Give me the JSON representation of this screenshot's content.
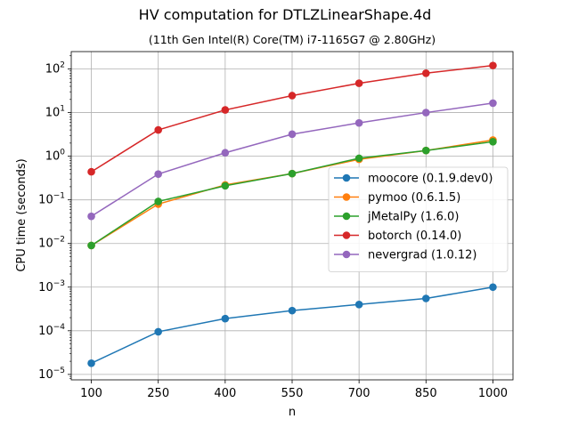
{
  "chart_data": {
    "type": "line",
    "title": "HV computation for DTLZLinearShape.4d",
    "subtitle": "(11th Gen Intel(R) Core(TM) i7-1165G7 @ 2.80GHz)",
    "xlabel": "n",
    "ylabel": "CPU time (seconds)",
    "x": [
      100,
      250,
      400,
      550,
      700,
      850,
      1000
    ],
    "x_ticks": [
      "100",
      "250",
      "400",
      "550",
      "700",
      "850",
      "1000"
    ],
    "y_scale": "log",
    "ylim": [
      7.5e-06,
      250
    ],
    "y_ticks": [
      {
        "base": "10",
        "exp": "−5",
        "value": 1e-05
      },
      {
        "base": "10",
        "exp": "−4",
        "value": 0.0001
      },
      {
        "base": "10",
        "exp": "−3",
        "value": 0.001
      },
      {
        "base": "10",
        "exp": "−2",
        "value": 0.01
      },
      {
        "base": "10",
        "exp": "−1",
        "value": 0.1
      },
      {
        "base": "10",
        "exp": "0",
        "value": 1
      },
      {
        "base": "10",
        "exp": "1",
        "value": 10
      },
      {
        "base": "10",
        "exp": "2",
        "value": 100
      }
    ],
    "grid": true,
    "legend_position": "center-right",
    "series": [
      {
        "name": "moocore (0.1.9.dev0)",
        "color": "#1f77b4",
        "values": [
          1.8e-05,
          9.5e-05,
          0.00019,
          0.00029,
          0.0004,
          0.00055,
          0.001
        ]
      },
      {
        "name": "pymoo (0.6.1.5)",
        "color": "#ff7f0e",
        "values": [
          0.009,
          0.08,
          0.22,
          0.4,
          0.85,
          1.35,
          2.35
        ]
      },
      {
        "name": "jMetalPy (1.6.0)",
        "color": "#2ca02c",
        "values": [
          0.009,
          0.092,
          0.21,
          0.4,
          0.9,
          1.35,
          2.15
        ]
      },
      {
        "name": "botorch (0.14.0)",
        "color": "#d62728",
        "values": [
          0.44,
          4.0,
          11.5,
          24.5,
          47,
          80,
          120
        ]
      },
      {
        "name": "nevergrad (1.0.12)",
        "color": "#9467bd",
        "values": [
          0.042,
          0.39,
          1.2,
          3.2,
          5.8,
          10,
          16.5
        ]
      }
    ]
  }
}
